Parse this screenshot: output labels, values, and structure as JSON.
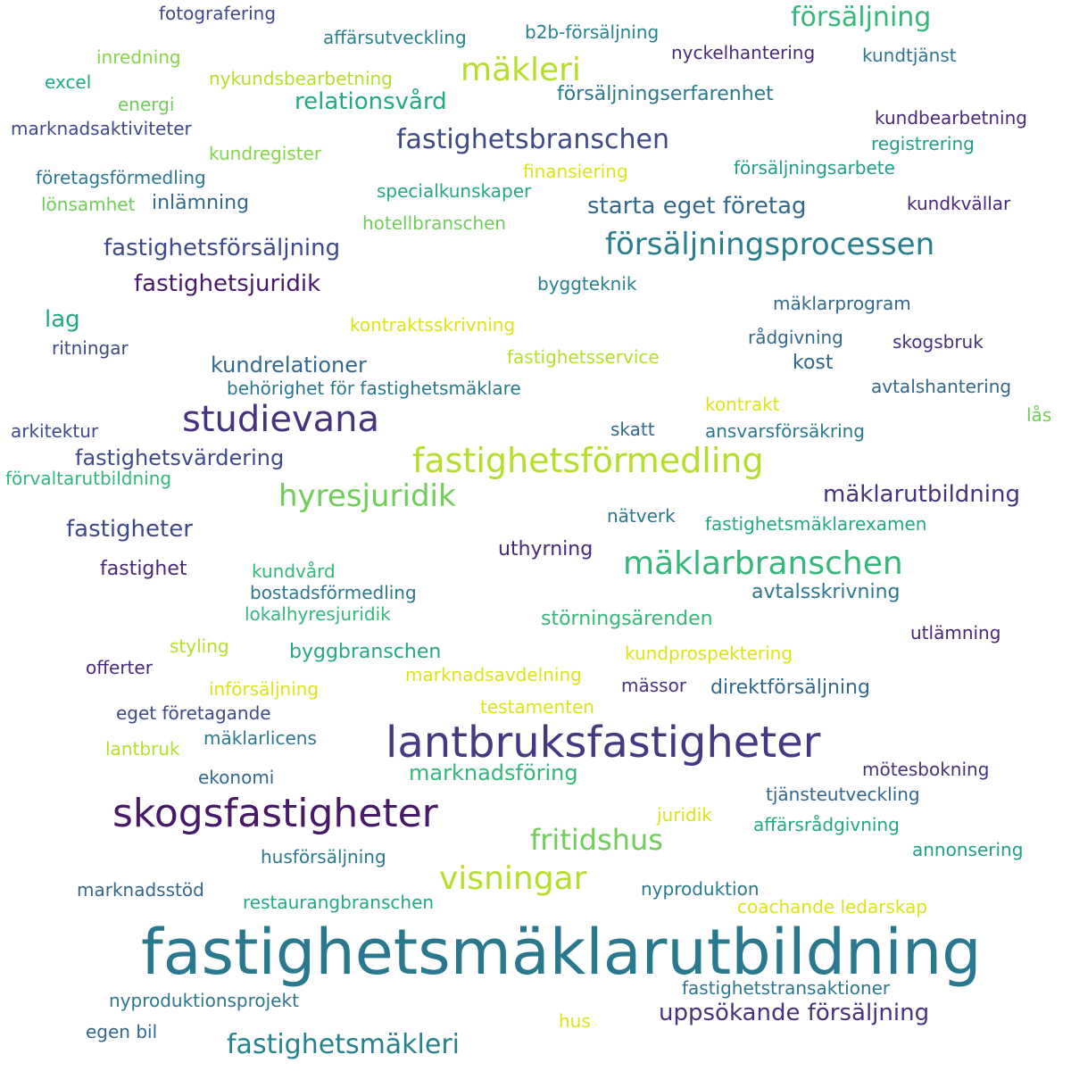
{
  "palette": {
    "background": "#ffffff",
    "colors": [
      "#440154",
      "#46327e",
      "#365c8d",
      "#277f8e",
      "#1fa187",
      "#4ac16d",
      "#a0da39",
      "#fde725"
    ]
  },
  "words": [
    {
      "text": "fastighetsmäklarutbildning",
      "color": "#2a788e"
    },
    {
      "text": "lantbruksfastigheter",
      "color": "#443a83"
    },
    {
      "text": "skogsfastigheter",
      "color": "#48186a"
    },
    {
      "text": "fastighetsförmedling",
      "color": "#b5de2b"
    },
    {
      "text": "studievana",
      "color": "#46327e"
    },
    {
      "text": "mäklarbranschen",
      "color": "#35b779"
    },
    {
      "text": "försäljningsprocessen",
      "color": "#287d8e"
    },
    {
      "text": "fastighetsbranschen",
      "color": "#3e4989"
    },
    {
      "text": "mäkleri",
      "color": "#b5de2b"
    },
    {
      "text": "försäljning",
      "color": "#35b779"
    },
    {
      "text": "hyresjuridik",
      "color": "#6ece58"
    },
    {
      "text": "visningar",
      "color": "#b5de2b"
    },
    {
      "text": "fritidshus",
      "color": "#6ece58"
    },
    {
      "text": "fastighetsmäkleri",
      "color": "#26828e"
    },
    {
      "text": "uppsökande försäljning",
      "color": "#46327e"
    },
    {
      "text": "starta eget företag",
      "color": "#31688e"
    },
    {
      "text": "fastighetsförsäljning",
      "color": "#3e4989"
    },
    {
      "text": "fastighetsjuridik",
      "color": "#48186a"
    },
    {
      "text": "relationsvård",
      "color": "#22a884"
    },
    {
      "text": "mäklarutbildning",
      "color": "#46327e"
    },
    {
      "text": "fastigheter",
      "color": "#3e4989"
    },
    {
      "text": "kundrelationer",
      "color": "#31688e"
    },
    {
      "text": "fastighetsvärdering",
      "color": "#3e4989"
    },
    {
      "text": "direktförsäljning",
      "color": "#31688e"
    },
    {
      "text": "marknadsföring",
      "color": "#35b779"
    },
    {
      "text": "försäljningserfarenhet",
      "color": "#2a788e"
    },
    {
      "text": "uthyrning",
      "color": "#482878"
    },
    {
      "text": "fastighet",
      "color": "#482878"
    },
    {
      "text": "avtalsskrivning",
      "color": "#2a788e"
    },
    {
      "text": "byggbranschen",
      "color": "#22a884"
    },
    {
      "text": "störningsärenden",
      "color": "#35b779"
    },
    {
      "text": "nyproduktion",
      "color": "#2a788e"
    },
    {
      "text": "lag",
      "color": "#22a884"
    },
    {
      "text": "inlämning",
      "color": "#31688e"
    },
    {
      "text": "kost",
      "color": "#31688e"
    },
    {
      "text": "affärsrådgivning",
      "color": "#22a884"
    },
    {
      "text": "nyckelhantering",
      "color": "#482878"
    },
    {
      "text": "mäklarprogram",
      "color": "#31688e"
    },
    {
      "text": "kundprospektering",
      "color": "#dde318"
    },
    {
      "text": "fotografering",
      "color": "#3e4989"
    },
    {
      "text": "affärsutveckling",
      "color": "#26828e"
    },
    {
      "text": "b2b-försäljning",
      "color": "#26828e"
    },
    {
      "text": "kundtjänst",
      "color": "#2a788e"
    },
    {
      "text": "inredning",
      "color": "#86d549"
    },
    {
      "text": "nykundsbearbetning",
      "color": "#b5de2b"
    },
    {
      "text": "excel",
      "color": "#22a884"
    },
    {
      "text": "energi",
      "color": "#6ece58"
    },
    {
      "text": "marknadsaktiviteter",
      "color": "#3e4989"
    },
    {
      "text": "kundbearbetning",
      "color": "#482878"
    },
    {
      "text": "registrering",
      "color": "#1f9e89"
    },
    {
      "text": "kundregister",
      "color": "#86d549"
    },
    {
      "text": "finansiering",
      "color": "#dde318"
    },
    {
      "text": "försäljningsarbete",
      "color": "#1f9e89"
    },
    {
      "text": "företagsförmedling",
      "color": "#2a788e"
    },
    {
      "text": "specialkunskaper",
      "color": "#22a884"
    },
    {
      "text": "lönsamhet",
      "color": "#6ece58"
    },
    {
      "text": "kundkvällar",
      "color": "#482878"
    },
    {
      "text": "hotellbranschen",
      "color": "#6ece58"
    },
    {
      "text": "byggteknik",
      "color": "#26828e"
    },
    {
      "text": "kontraktsskrivning",
      "color": "#dde318"
    },
    {
      "text": "rådgivning",
      "color": "#31688e"
    },
    {
      "text": "ritningar",
      "color": "#3e4989"
    },
    {
      "text": "skogsbruk",
      "color": "#46327e"
    },
    {
      "text": "fastighetsservice",
      "color": "#b5de2b"
    },
    {
      "text": "behörighet för fastighetsmäklare",
      "color": "#2a788e"
    },
    {
      "text": "avtalshantering",
      "color": "#31688e"
    },
    {
      "text": "kontrakt",
      "color": "#dde318"
    },
    {
      "text": "arkitektur",
      "color": "#3e4989"
    },
    {
      "text": "skatt",
      "color": "#31688e"
    },
    {
      "text": "ansvarsförsäkring",
      "color": "#2a788e"
    },
    {
      "text": "lås",
      "color": "#6ece58"
    },
    {
      "text": "förvaltarutbildning",
      "color": "#35b779"
    },
    {
      "text": "nätverk",
      "color": "#2a788e"
    },
    {
      "text": "fastighetsmäklarexamen",
      "color": "#22a884"
    },
    {
      "text": "kundvård",
      "color": "#35b779"
    },
    {
      "text": "bostadsförmedling",
      "color": "#2a788e"
    },
    {
      "text": "lokalhyresjuridik",
      "color": "#35b779"
    },
    {
      "text": "utlämning",
      "color": "#482878"
    },
    {
      "text": "styling",
      "color": "#b5de2b"
    },
    {
      "text": "offerter",
      "color": "#482878"
    },
    {
      "text": "marknadsavdelning",
      "color": "#dde318"
    },
    {
      "text": "införsäljning",
      "color": "#dde318"
    },
    {
      "text": "mässor",
      "color": "#46327e"
    },
    {
      "text": "testamenten",
      "color": "#dde318"
    },
    {
      "text": "eget företagande",
      "color": "#3e4989"
    },
    {
      "text": "mäklarlicens",
      "color": "#2a788e"
    },
    {
      "text": "lantbruk",
      "color": "#b5de2b"
    },
    {
      "text": "ekonomi",
      "color": "#31688e"
    },
    {
      "text": "mötesbokning",
      "color": "#46327e"
    },
    {
      "text": "tjänsteutveckling",
      "color": "#31688e"
    },
    {
      "text": "juridik",
      "color": "#dde318"
    },
    {
      "text": "husförsäljning",
      "color": "#2a788e"
    },
    {
      "text": "annonsering",
      "color": "#1f9e89"
    },
    {
      "text": "marknadsstöd",
      "color": "#31688e"
    },
    {
      "text": "restaurangbranschen",
      "color": "#22a884"
    },
    {
      "text": "coachande ledarskap",
      "color": "#dde318"
    },
    {
      "text": "fastighetstransaktioner",
      "color": "#2a788e"
    },
    {
      "text": "nyproduktionsprojekt",
      "color": "#2a788e"
    },
    {
      "text": "hus",
      "color": "#dde318"
    },
    {
      "text": "egen bil",
      "color": "#31688e"
    }
  ]
}
